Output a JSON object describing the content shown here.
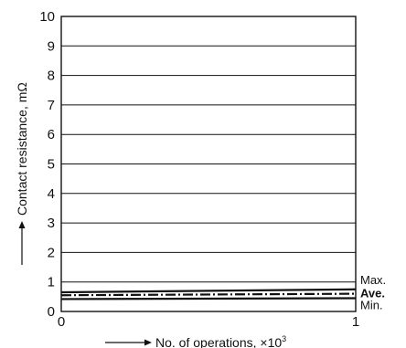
{
  "chart_data": {
    "type": "line",
    "xlabel": "No. of operations, ×10",
    "xlabel_exponent": "3",
    "ylabel": "Contact resistance, mΩ",
    "xlim": [
      0,
      1
    ],
    "ylim": [
      0,
      10
    ],
    "x_ticks": [
      "0",
      "1"
    ],
    "y_ticks": [
      "0",
      "1",
      "2",
      "3",
      "4",
      "5",
      "6",
      "7",
      "8",
      "9",
      "10"
    ],
    "grid": "horizontal",
    "x": [
      0,
      1
    ],
    "series": [
      {
        "name": "Max.",
        "values": [
          0.65,
          0.75
        ],
        "style": "solid",
        "color": "#111111"
      },
      {
        "name": "Ave.",
        "values": [
          0.55,
          0.6
        ],
        "style": "dash-dot",
        "color": "#111111"
      },
      {
        "name": "Min.",
        "values": [
          0.42,
          0.45
        ],
        "style": "solid",
        "color": "#111111"
      }
    ]
  }
}
